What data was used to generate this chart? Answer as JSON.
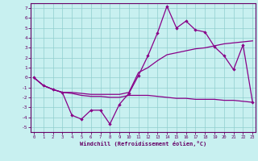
{
  "xlabel": "Windchill (Refroidissement éolien,°C)",
  "bg_color": "#c8f0f0",
  "line_color": "#880088",
  "x": [
    0,
    1,
    2,
    3,
    4,
    5,
    6,
    7,
    8,
    9,
    10,
    11,
    12,
    13,
    14,
    15,
    16,
    17,
    18,
    19,
    20,
    21,
    22,
    23
  ],
  "y_main": [
    0,
    -0.8,
    -1.2,
    -1.5,
    -3.8,
    -4.2,
    -3.3,
    -3.3,
    -4.7,
    -2.7,
    -1.6,
    0.2,
    2.2,
    4.5,
    7.2,
    5.0,
    5.7,
    4.8,
    4.6,
    3.1,
    2.2,
    0.8,
    3.3,
    -2.5
  ],
  "y_upper": [
    0,
    -0.8,
    -1.2,
    -1.5,
    -1.5,
    -1.6,
    -1.7,
    -1.7,
    -1.7,
    -1.7,
    -1.5,
    0.5,
    1.0,
    1.7,
    2.3,
    2.5,
    2.7,
    2.9,
    3.0,
    3.2,
    3.4,
    3.5,
    3.6,
    3.7
  ],
  "y_lower": [
    0,
    -0.8,
    -1.2,
    -1.5,
    -1.6,
    -1.8,
    -1.9,
    -1.9,
    -2.0,
    -2.0,
    -1.8,
    -1.8,
    -1.8,
    -1.9,
    -2.0,
    -2.1,
    -2.1,
    -2.2,
    -2.2,
    -2.2,
    -2.3,
    -2.3,
    -2.4,
    -2.5
  ],
  "ylim": [
    -5.5,
    7.5
  ],
  "yticks": [
    -5,
    -4,
    -3,
    -2,
    -1,
    0,
    1,
    2,
    3,
    4,
    5,
    6,
    7
  ],
  "xticks": [
    0,
    1,
    2,
    3,
    4,
    5,
    6,
    7,
    8,
    9,
    10,
    11,
    12,
    13,
    14,
    15,
    16,
    17,
    18,
    19,
    20,
    21,
    22,
    23
  ]
}
